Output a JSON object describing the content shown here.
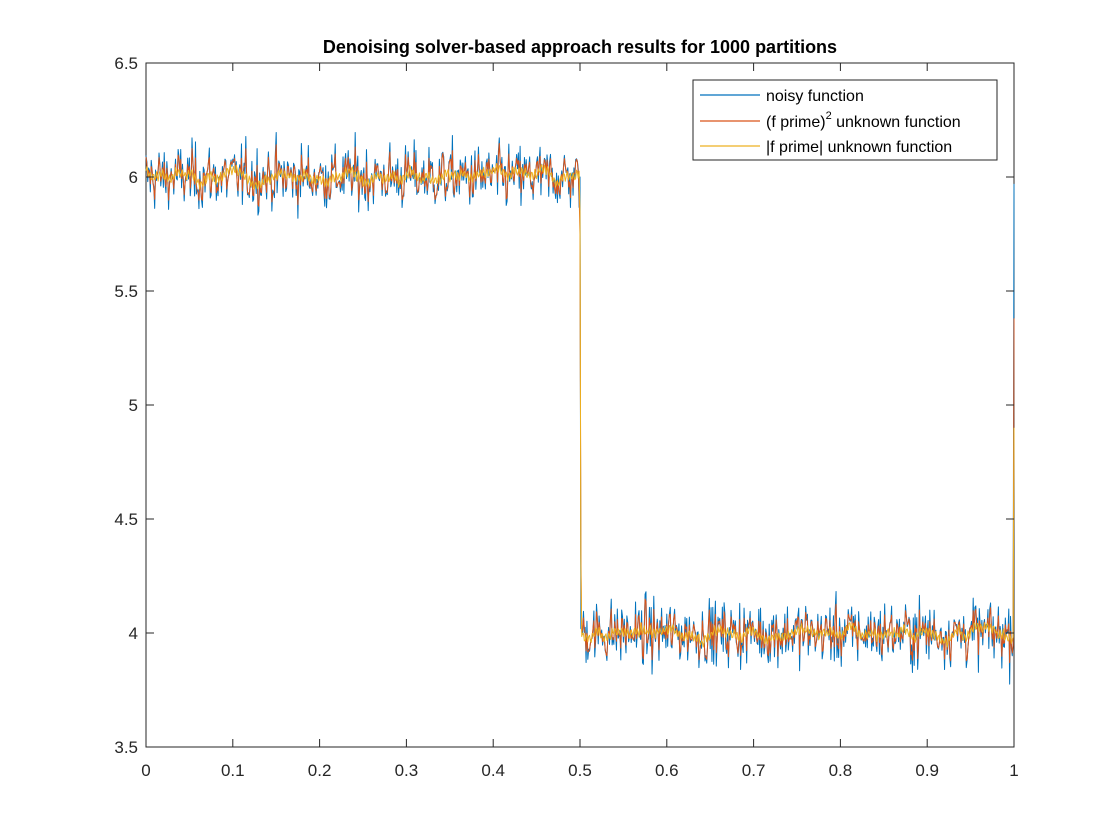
{
  "chart_data": {
    "type": "line",
    "title": "Denoising solver-based approach results for 1000 partitions",
    "xlabel": "",
    "ylabel": "",
    "xlim": [
      0,
      1
    ],
    "ylim": [
      3.5,
      6.5
    ],
    "xticks": [
      0,
      0.1,
      0.2,
      0.3,
      0.4,
      0.5,
      0.6,
      0.7,
      0.8,
      0.9,
      1
    ],
    "xtick_labels": [
      "0",
      "0.1",
      "0.2",
      "0.3",
      "0.4",
      "0.5",
      "0.6",
      "0.7",
      "0.8",
      "0.9",
      "1"
    ],
    "yticks": [
      3.5,
      4,
      4.5,
      5,
      5.5,
      6,
      6.5
    ],
    "ytick_labels": [
      "3.5",
      "4",
      "4.5",
      "5",
      "5.5",
      "6",
      "6.5"
    ],
    "grid": false,
    "legend_position": "top-right",
    "underlying_signal": {
      "x": [
        0,
        0.5,
        0.5,
        1
      ],
      "y": [
        6,
        6,
        4,
        4
      ]
    },
    "series": [
      {
        "name": "noisy function",
        "color": "#0072BD",
        "noise_std": 0.1,
        "y_min_observed": 3.7,
        "y_max_observed": 6.26,
        "end_value": 5.97
      },
      {
        "name": "(f prime)^2 unknown function",
        "legend_main": "(f prime)",
        "legend_sup": "2",
        "legend_rest": " unknown function",
        "color": "#D95319",
        "noise_std": 0.07,
        "end_value": 5.38
      },
      {
        "name": "|f prime| unknown function",
        "color": "#EDB120",
        "noise_std": 0.025,
        "end_value": 4.9
      }
    ]
  }
}
